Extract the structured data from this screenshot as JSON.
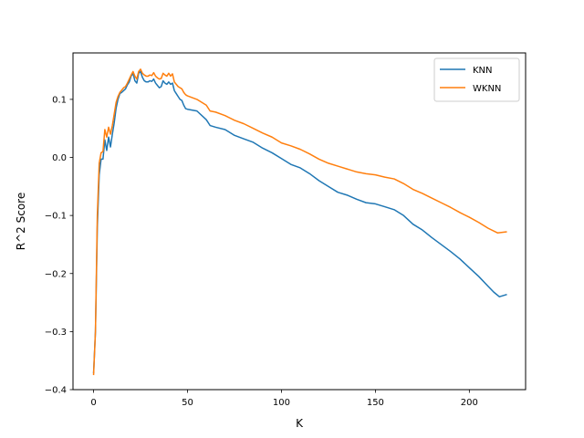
{
  "chart_data": {
    "type": "line",
    "title": "",
    "xlabel": "K",
    "ylabel": "R^2 Score",
    "xlim": [
      -10.95,
      229.95
    ],
    "ylim": [
      -0.4,
      0.18
    ],
    "grid": false,
    "legend_position": "top-right",
    "x_ticks": [
      {
        "value": 0,
        "label": "0"
      },
      {
        "value": 50,
        "label": "50"
      },
      {
        "value": 100,
        "label": "100"
      },
      {
        "value": 150,
        "label": "150"
      },
      {
        "value": 200,
        "label": "200"
      }
    ],
    "y_ticks": [
      {
        "value": -0.4,
        "label": "−0.4"
      },
      {
        "value": -0.3,
        "label": "−0.3"
      },
      {
        "value": -0.2,
        "label": "−0.2"
      },
      {
        "value": -0.1,
        "label": "−0.1"
      },
      {
        "value": 0.0,
        "label": "0.0"
      },
      {
        "value": 0.1,
        "label": "0.1"
      }
    ],
    "series": [
      {
        "name": "KNN",
        "color": "#1f77b4",
        "points": [
          [
            0,
            -0.372
          ],
          [
            1,
            -0.3
          ],
          [
            2,
            -0.12
          ],
          [
            3,
            -0.03
          ],
          [
            4,
            -0.003
          ],
          [
            5,
            -0.003
          ],
          [
            6,
            0.03
          ],
          [
            7,
            0.012
          ],
          [
            8,
            0.035
          ],
          [
            9,
            0.018
          ],
          [
            10,
            0.04
          ],
          [
            11,
            0.06
          ],
          [
            12,
            0.085
          ],
          [
            13,
            0.1
          ],
          [
            14,
            0.11
          ],
          [
            15,
            0.112
          ],
          [
            16,
            0.115
          ],
          [
            17,
            0.118
          ],
          [
            18,
            0.125
          ],
          [
            19,
            0.13
          ],
          [
            20,
            0.14
          ],
          [
            21,
            0.145
          ],
          [
            22,
            0.132
          ],
          [
            23,
            0.128
          ],
          [
            24,
            0.145
          ],
          [
            25,
            0.148
          ],
          [
            26,
            0.138
          ],
          [
            27,
            0.132
          ],
          [
            28,
            0.13
          ],
          [
            29,
            0.13
          ],
          [
            30,
            0.132
          ],
          [
            31,
            0.131
          ],
          [
            32,
            0.135
          ],
          [
            33,
            0.128
          ],
          [
            34,
            0.124
          ],
          [
            35,
            0.12
          ],
          [
            36,
            0.122
          ],
          [
            37,
            0.132
          ],
          [
            38,
            0.128
          ],
          [
            39,
            0.126
          ],
          [
            40,
            0.13
          ],
          [
            41,
            0.126
          ],
          [
            42,
            0.128
          ],
          [
            43,
            0.115
          ],
          [
            44,
            0.11
          ],
          [
            45,
            0.105
          ],
          [
            46,
            0.1
          ],
          [
            47,
            0.098
          ],
          [
            48,
            0.09
          ],
          [
            49,
            0.084
          ],
          [
            50,
            0.083
          ],
          [
            55,
            0.08
          ],
          [
            60,
            0.065
          ],
          [
            62,
            0.055
          ],
          [
            65,
            0.052
          ],
          [
            70,
            0.048
          ],
          [
            75,
            0.038
          ],
          [
            80,
            0.032
          ],
          [
            85,
            0.026
          ],
          [
            90,
            0.016
          ],
          [
            95,
            0.008
          ],
          [
            100,
            -0.002
          ],
          [
            105,
            -0.012
          ],
          [
            110,
            -0.018
          ],
          [
            115,
            -0.028
          ],
          [
            120,
            -0.04
          ],
          [
            125,
            -0.05
          ],
          [
            130,
            -0.06
          ],
          [
            135,
            -0.065
          ],
          [
            140,
            -0.072
          ],
          [
            145,
            -0.078
          ],
          [
            150,
            -0.08
          ],
          [
            155,
            -0.085
          ],
          [
            160,
            -0.09
          ],
          [
            165,
            -0.1
          ],
          [
            170,
            -0.115
          ],
          [
            175,
            -0.125
          ],
          [
            180,
            -0.138
          ],
          [
            185,
            -0.15
          ],
          [
            190,
            -0.162
          ],
          [
            195,
            -0.175
          ],
          [
            200,
            -0.19
          ],
          [
            205,
            -0.205
          ],
          [
            210,
            -0.222
          ],
          [
            213,
            -0.232
          ],
          [
            216,
            -0.24
          ],
          [
            220,
            -0.236
          ]
        ]
      },
      {
        "name": "WKNN",
        "color": "#ff7f0e",
        "points": [
          [
            0,
            -0.375
          ],
          [
            1,
            -0.3
          ],
          [
            2,
            -0.1
          ],
          [
            3,
            -0.01
          ],
          [
            4,
            0.008
          ],
          [
            5,
            0.01
          ],
          [
            6,
            0.048
          ],
          [
            7,
            0.035
          ],
          [
            8,
            0.052
          ],
          [
            9,
            0.04
          ],
          [
            10,
            0.055
          ],
          [
            11,
            0.075
          ],
          [
            12,
            0.095
          ],
          [
            13,
            0.105
          ],
          [
            14,
            0.112
          ],
          [
            15,
            0.116
          ],
          [
            16,
            0.12
          ],
          [
            17,
            0.122
          ],
          [
            18,
            0.128
          ],
          [
            19,
            0.135
          ],
          [
            20,
            0.142
          ],
          [
            21,
            0.148
          ],
          [
            22,
            0.14
          ],
          [
            23,
            0.135
          ],
          [
            24,
            0.148
          ],
          [
            25,
            0.152
          ],
          [
            26,
            0.145
          ],
          [
            27,
            0.142
          ],
          [
            28,
            0.14
          ],
          [
            29,
            0.14
          ],
          [
            30,
            0.142
          ],
          [
            31,
            0.141
          ],
          [
            32,
            0.146
          ],
          [
            33,
            0.14
          ],
          [
            34,
            0.137
          ],
          [
            35,
            0.135
          ],
          [
            36,
            0.136
          ],
          [
            37,
            0.145
          ],
          [
            38,
            0.142
          ],
          [
            39,
            0.14
          ],
          [
            40,
            0.145
          ],
          [
            41,
            0.14
          ],
          [
            42,
            0.144
          ],
          [
            43,
            0.13
          ],
          [
            44,
            0.126
          ],
          [
            45,
            0.122
          ],
          [
            46,
            0.12
          ],
          [
            47,
            0.118
          ],
          [
            48,
            0.112
          ],
          [
            49,
            0.108
          ],
          [
            50,
            0.106
          ],
          [
            55,
            0.1
          ],
          [
            60,
            0.09
          ],
          [
            62,
            0.08
          ],
          [
            65,
            0.078
          ],
          [
            70,
            0.072
          ],
          [
            75,
            0.064
          ],
          [
            80,
            0.058
          ],
          [
            85,
            0.05
          ],
          [
            90,
            0.042
          ],
          [
            95,
            0.035
          ],
          [
            100,
            0.025
          ],
          [
            105,
            0.02
          ],
          [
            110,
            0.014
          ],
          [
            115,
            0.006
          ],
          [
            120,
            -0.003
          ],
          [
            125,
            -0.01
          ],
          [
            130,
            -0.015
          ],
          [
            135,
            -0.02
          ],
          [
            140,
            -0.025
          ],
          [
            145,
            -0.028
          ],
          [
            150,
            -0.03
          ],
          [
            155,
            -0.034
          ],
          [
            160,
            -0.037
          ],
          [
            165,
            -0.045
          ],
          [
            170,
            -0.055
          ],
          [
            175,
            -0.062
          ],
          [
            180,
            -0.07
          ],
          [
            185,
            -0.078
          ],
          [
            190,
            -0.086
          ],
          [
            195,
            -0.095
          ],
          [
            200,
            -0.103
          ],
          [
            205,
            -0.112
          ],
          [
            210,
            -0.122
          ],
          [
            215,
            -0.13
          ],
          [
            220,
            -0.128
          ]
        ]
      }
    ]
  }
}
